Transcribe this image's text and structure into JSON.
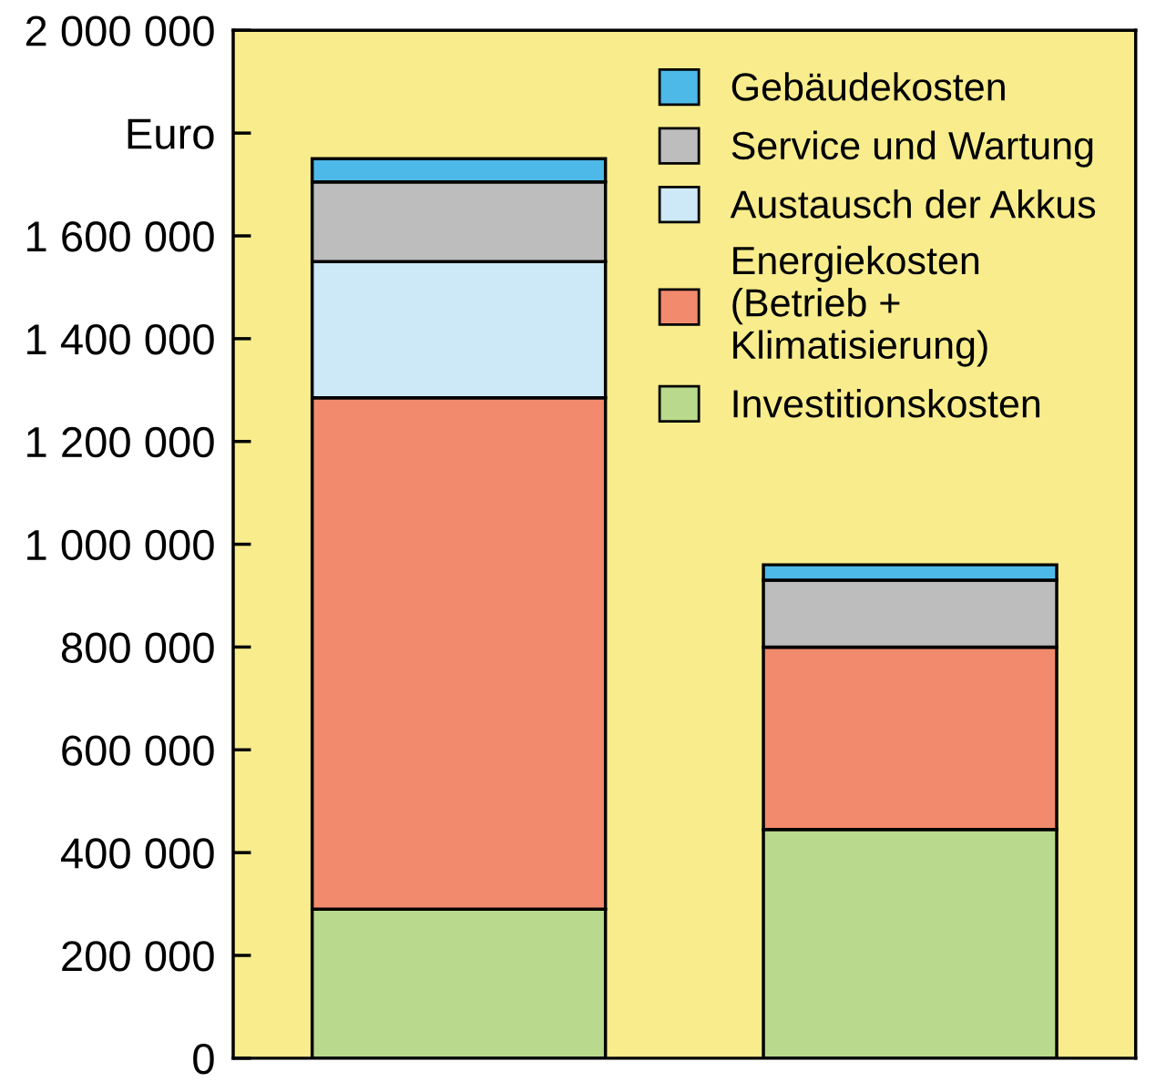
{
  "chart_data": {
    "type": "bar",
    "stacked": true,
    "categories": [
      null,
      null
    ],
    "series": [
      {
        "name": "Investitionskosten",
        "color": "#b9da8c",
        "values": [
          290000,
          445000
        ]
      },
      {
        "name": "Energiekosten\n(Betrieb +\nKlimatisierung)",
        "color": "#f28a6e",
        "values": [
          995000,
          355000
        ]
      },
      {
        "name": "Austausch der Akkus",
        "color": "#cde8f7",
        "values": [
          265000,
          0
        ]
      },
      {
        "name": "Service und Wartung",
        "color": "#bdbdbd",
        "values": [
          155000,
          130000
        ]
      },
      {
        "name": "Gebäudekosten",
        "color": "#4db9e8",
        "values": [
          45000,
          30000
        ]
      }
    ],
    "ylim": [
      0,
      2000000
    ],
    "yticks": [
      0,
      {
        "value": 200000,
        "label": "200 000"
      },
      {
        "value": 400000,
        "label": "400 000"
      },
      {
        "value": 600000,
        "label": "600 000"
      },
      {
        "value": 800000,
        "label": "800 000"
      },
      {
        "value": 1000000,
        "label": "1 000 000"
      },
      {
        "value": 1200000,
        "label": "1 200 000"
      },
      {
        "value": 1400000,
        "label": "1 400 000"
      },
      {
        "value": 1600000,
        "label": "1 600 000"
      },
      {
        "value": 1800000,
        "label": "Euro"
      },
      {
        "value": 2000000,
        "label": "2 000 000"
      }
    ],
    "legend": "top right",
    "grid": false
  }
}
